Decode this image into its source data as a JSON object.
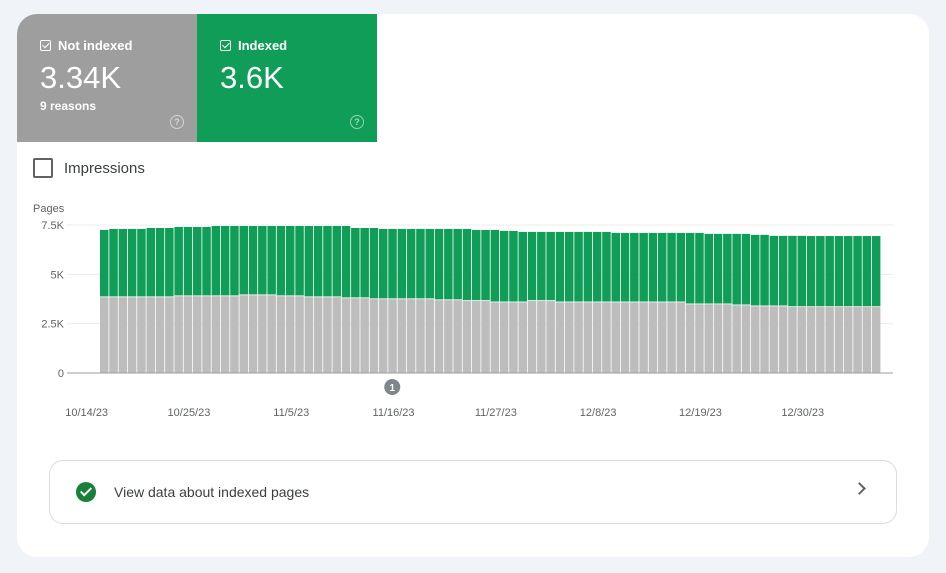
{
  "metrics": {
    "not_indexed": {
      "label": "Not indexed",
      "value": "3.34K",
      "sub": "9 reasons",
      "color": "#9e9e9e",
      "checked": true
    },
    "indexed": {
      "label": "Indexed",
      "value": "3.6K",
      "color": "#0f9d58",
      "checked": true
    }
  },
  "impressions": {
    "label": "Impressions",
    "checked": false
  },
  "action": {
    "label": "View data about indexed pages",
    "icon": "check-circle-icon",
    "chevron": "chevron-right-icon"
  },
  "chart_data": {
    "type": "bar",
    "stacked": true,
    "ylabel": "Pages",
    "ylim": [
      0,
      7500
    ],
    "yticks": [
      {
        "value": 0,
        "label": "0"
      },
      {
        "value": 2500,
        "label": "2.5K"
      },
      {
        "value": 5000,
        "label": "5K"
      },
      {
        "value": 7500,
        "label": "7.5K"
      }
    ],
    "grid": true,
    "xtick_labels": [
      "10/14/23",
      "10/25/23",
      "11/5/23",
      "11/16/23",
      "11/27/23",
      "12/8/23",
      "12/19/23",
      "12/30/23"
    ],
    "annotation": {
      "label": "1",
      "date": "11/15/23"
    },
    "x": [
      "10/14/23",
      "10/15/23",
      "10/16/23",
      "10/17/23",
      "10/18/23",
      "10/19/23",
      "10/20/23",
      "10/21/23",
      "10/22/23",
      "10/23/23",
      "10/24/23",
      "10/25/23",
      "10/26/23",
      "10/27/23",
      "10/28/23",
      "10/29/23",
      "10/30/23",
      "10/31/23",
      "11/1/23",
      "11/2/23",
      "11/3/23",
      "11/4/23",
      "11/5/23",
      "11/6/23",
      "11/7/23",
      "11/8/23",
      "11/9/23",
      "11/10/23",
      "11/11/23",
      "11/12/23",
      "11/13/23",
      "11/14/23",
      "11/15/23",
      "11/16/23",
      "11/17/23",
      "11/18/23",
      "11/19/23",
      "11/20/23",
      "11/21/23",
      "11/22/23",
      "11/23/23",
      "11/24/23",
      "11/25/23",
      "11/26/23",
      "11/27/23",
      "11/28/23",
      "11/29/23",
      "11/30/23",
      "12/1/23",
      "12/2/23",
      "12/3/23",
      "12/4/23",
      "12/5/23",
      "12/6/23",
      "12/7/23",
      "12/8/23",
      "12/9/23",
      "12/10/23",
      "12/11/23",
      "12/12/23",
      "12/13/23",
      "12/14/23",
      "12/15/23",
      "12/16/23",
      "12/17/23",
      "12/18/23",
      "12/19/23",
      "12/20/23",
      "12/21/23",
      "12/22/23",
      "12/23/23",
      "12/24/23",
      "12/25/23",
      "12/26/23",
      "12/27/23",
      "12/28/23",
      "12/29/23",
      "12/30/23",
      "12/31/23",
      "1/1/24",
      "1/2/24",
      "1/3/24",
      "1/4/24",
      "1/5/24"
    ],
    "series": [
      {
        "name": "Not indexed",
        "color": "#bdbdbd",
        "values": [
          3840,
          3840,
          3840,
          3840,
          3840,
          3840,
          3840,
          3840,
          3890,
          3890,
          3890,
          3890,
          3890,
          3890,
          3890,
          3940,
          3940,
          3940,
          3940,
          3890,
          3890,
          3890,
          3840,
          3840,
          3840,
          3840,
          3790,
          3790,
          3790,
          3740,
          3740,
          3740,
          3740,
          3740,
          3740,
          3740,
          3690,
          3690,
          3690,
          3650,
          3650,
          3650,
          3580,
          3580,
          3580,
          3580,
          3650,
          3650,
          3650,
          3580,
          3580,
          3580,
          3580,
          3580,
          3580,
          3580,
          3580,
          3580,
          3580,
          3580,
          3580,
          3580,
          3580,
          3480,
          3480,
          3480,
          3480,
          3480,
          3430,
          3430,
          3380,
          3380,
          3380,
          3380,
          3340,
          3340,
          3340,
          3340,
          3340,
          3340,
          3340,
          3340,
          3340,
          3340
        ]
      },
      {
        "name": "Indexed",
        "color": "#0f9d58",
        "values": [
          3410,
          3460,
          3460,
          3460,
          3460,
          3510,
          3510,
          3510,
          3510,
          3510,
          3510,
          3510,
          3560,
          3560,
          3560,
          3510,
          3510,
          3510,
          3510,
          3560,
          3560,
          3560,
          3610,
          3610,
          3610,
          3610,
          3660,
          3560,
          3560,
          3610,
          3560,
          3560,
          3560,
          3560,
          3560,
          3560,
          3610,
          3610,
          3610,
          3650,
          3600,
          3600,
          3670,
          3620,
          3620,
          3570,
          3500,
          3500,
          3500,
          3570,
          3570,
          3570,
          3570,
          3570,
          3570,
          3520,
          3520,
          3520,
          3520,
          3520,
          3520,
          3520,
          3520,
          3620,
          3620,
          3570,
          3570,
          3570,
          3620,
          3620,
          3620,
          3620,
          3570,
          3570,
          3610,
          3610,
          3600,
          3600,
          3600,
          3600,
          3600,
          3600,
          3600,
          3600
        ]
      }
    ]
  }
}
